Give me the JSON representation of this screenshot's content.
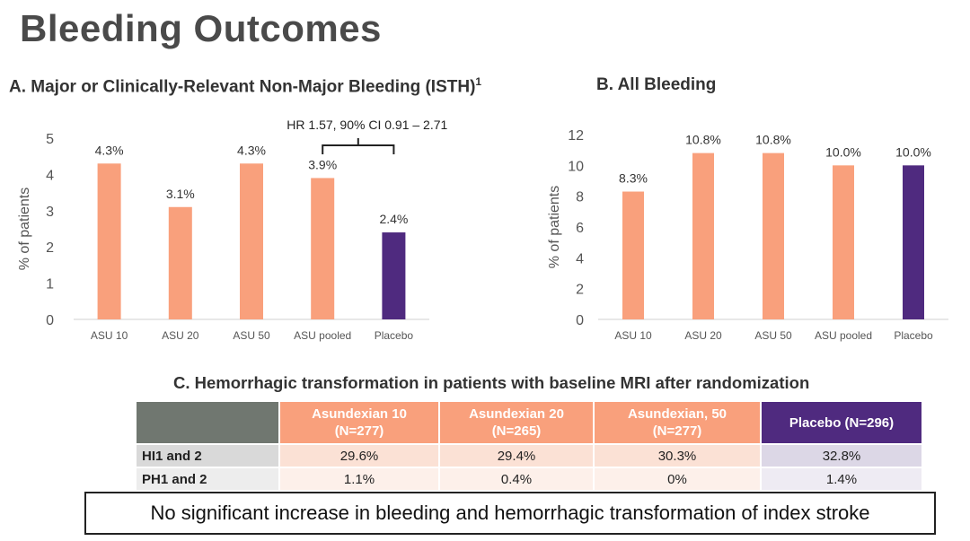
{
  "slide_title": "Bleeding Outcomes",
  "panel_a": {
    "title": "A. Major or Clinically-Relevant Non-Major Bleeding (ISTH)",
    "superscript": "1",
    "hr_annotation": "HR 1.57, 90% CI 0.91 – 2.71"
  },
  "panel_b": {
    "title": "B. All Bleeding"
  },
  "panel_c": {
    "title": "C. Hemorrhagic transformation in patients with baseline MRI after randomization"
  },
  "chart_data": [
    {
      "type": "bar",
      "title": "A. Major or Clinically-Relevant Non-Major Bleeding (ISTH)",
      "categories": [
        "ASU 10",
        "ASU 20",
        "ASU 50",
        "ASU pooled",
        "Placebo"
      ],
      "values": [
        4.3,
        3.1,
        4.3,
        3.9,
        2.4
      ],
      "data_labels": [
        "4.3%",
        "3.1%",
        "4.3%",
        "3.9%",
        "2.4%"
      ],
      "ylabel": "% of patients",
      "ylim": [
        0,
        5
      ],
      "yticks": [
        0,
        1,
        2,
        3,
        4,
        5
      ],
      "colors": [
        "#f9a07c",
        "#f9a07c",
        "#f9a07c",
        "#f9a07c",
        "#4f2a7f"
      ],
      "grid": false
    },
    {
      "type": "bar",
      "title": "B. All Bleeding",
      "categories": [
        "ASU 10",
        "ASU 20",
        "ASU 50",
        "ASU pooled",
        "Placebo"
      ],
      "values": [
        8.3,
        10.8,
        10.8,
        10.0,
        10.0
      ],
      "data_labels": [
        "8.3%",
        "10.8%",
        "10.8%",
        "10.0%",
        "10.0%"
      ],
      "ylabel": "% of patients",
      "ylim": [
        0,
        12
      ],
      "yticks": [
        0,
        2,
        4,
        6,
        8,
        10,
        12
      ],
      "colors": [
        "#f9a07c",
        "#f9a07c",
        "#f9a07c",
        "#f9a07c",
        "#4f2a7f"
      ],
      "grid": false
    },
    {
      "type": "table",
      "columns": [
        {
          "name": "Asundexian 10",
          "n": "(N=277)",
          "color": "#f9a07c"
        },
        {
          "name": "Asundexian 20",
          "n": "(N=265)",
          "color": "#f9a07c"
        },
        {
          "name": "Asundexian, 50",
          "n": "(N=277)",
          "color": "#f9a07c"
        },
        {
          "name": "Placebo (N=296)",
          "n": "",
          "color": "#4f2a7f"
        }
      ],
      "rows": [
        {
          "label": "HI1 and 2",
          "values": [
            "29.6%",
            "29.4%",
            "30.3%",
            "32.8%"
          ]
        },
        {
          "label": "PH1 and 2",
          "values": [
            "1.1%",
            "0.4%",
            "0%",
            "1.4%"
          ]
        }
      ]
    }
  ],
  "conclusion": "No significant increase in bleeding and hemorrhagic transformation of index stroke"
}
